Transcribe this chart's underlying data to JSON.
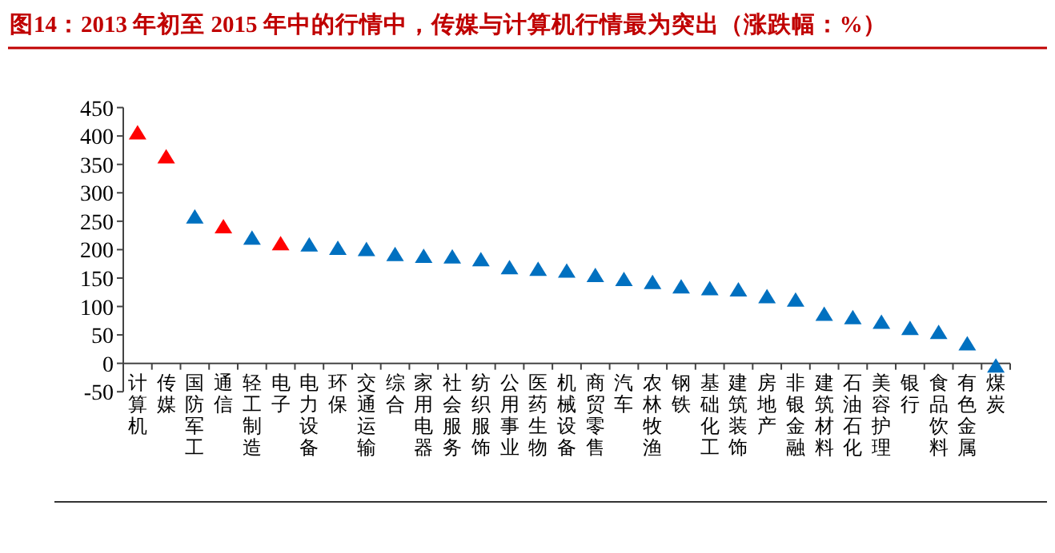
{
  "chart_data": {
    "type": "scatter",
    "title": "图14：2013 年初至 2015 年中的行情中，传媒与计算机行情最为突出（涨跌幅：%）",
    "categories": [
      "计算机",
      "传媒",
      "国防军工",
      "通信",
      "轻工制造",
      "电子",
      "电力设备",
      "环保",
      "交通运输",
      "综合",
      "家用电器",
      "社会服务",
      "纺织服饰",
      "公用事业",
      "医药生物",
      "机械设备",
      "商贸零售",
      "汽车",
      "农林牧渔",
      "钢铁",
      "基础化工",
      "建筑装饰",
      "房地产",
      "非银金融",
      "建筑材料",
      "石油石化",
      "美容护理",
      "银行",
      "食品饮料",
      "有色金属",
      "煤炭"
    ],
    "values": [
      405,
      363,
      257,
      240,
      220,
      210,
      208,
      202,
      200,
      191,
      188,
      187,
      182,
      168,
      165,
      162,
      154,
      147,
      142,
      134,
      131,
      129,
      117,
      111,
      86,
      80,
      72,
      61,
      54,
      34,
      -5
    ],
    "colors": [
      "#ff0000",
      "#ff0000",
      "#0070c0",
      "#ff0000",
      "#0070c0",
      "#ff0000",
      "#0070c0",
      "#0070c0",
      "#0070c0",
      "#0070c0",
      "#0070c0",
      "#0070c0",
      "#0070c0",
      "#0070c0",
      "#0070c0",
      "#0070c0",
      "#0070c0",
      "#0070c0",
      "#0070c0",
      "#0070c0",
      "#0070c0",
      "#0070c0",
      "#0070c0",
      "#0070c0",
      "#0070c0",
      "#0070c0",
      "#0070c0",
      "#0070c0",
      "#0070c0",
      "#0070c0",
      "#0070c0"
    ],
    "marker": "triangle",
    "ylim": [
      -50,
      450
    ],
    "yticks": [
      -50,
      0,
      50,
      100,
      150,
      200,
      250,
      300,
      350,
      400,
      450
    ]
  }
}
